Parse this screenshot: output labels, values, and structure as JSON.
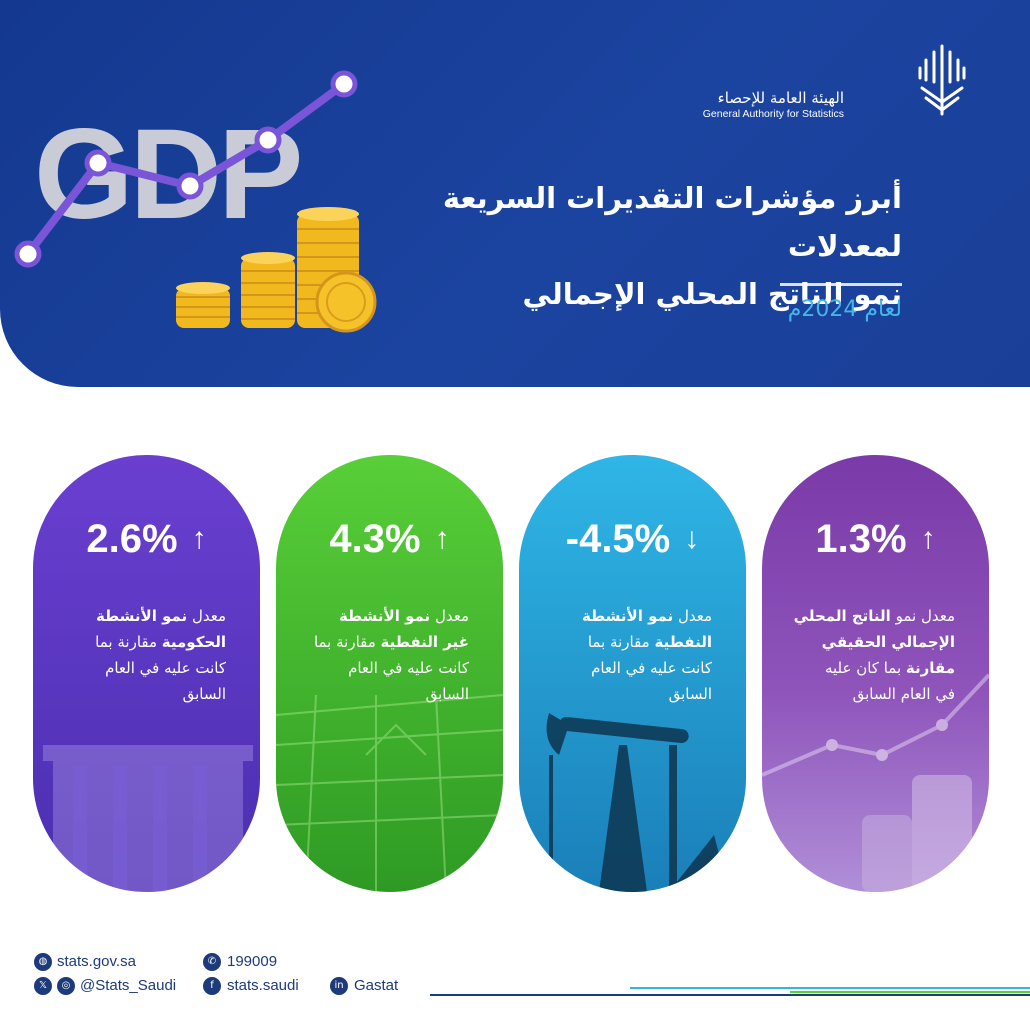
{
  "header": {
    "banner_word": "GDP",
    "logo_ar": "الهيئة العامة للإحصاء",
    "logo_en": "General Authority for Statistics",
    "title_line1": "أبرز مؤشرات التقديرات السريعة لمعدلات",
    "title_line2": "نمو الناتج المحلي الإجمالي",
    "year": "لعام 2024م"
  },
  "cards": [
    {
      "value": "2.6%",
      "direction": "up",
      "arrow": "↑",
      "color_top": "#6a3fd0",
      "color_bottom": "#4a2fb0",
      "desc": [
        {
          "pre": "معدل ",
          "bold": "نمو الأنشطة",
          "post": ""
        },
        {
          "pre": "",
          "bold": "الحكومية",
          "post": " مقارنة بما"
        },
        {
          "pre": "كانت عليه في العام",
          "bold": "",
          "post": ""
        },
        {
          "pre": "السابق",
          "bold": "",
          "post": ""
        }
      ]
    },
    {
      "value": "4.3%",
      "direction": "up",
      "arrow": "↑",
      "color_top": "#58cf38",
      "color_bottom": "#2e9a24",
      "desc": [
        {
          "pre": "معدل ",
          "bold": "نمو الأنشطة",
          "post": ""
        },
        {
          "pre": "",
          "bold": "غير النفطية",
          "post": " مقارنة بما"
        },
        {
          "pre": "كانت عليه في العام",
          "bold": "",
          "post": ""
        },
        {
          "pre": "السابق",
          "bold": "",
          "post": ""
        }
      ]
    },
    {
      "value": "-4.5%",
      "direction": "down",
      "arrow": "↓",
      "color_top": "#2fb6e6",
      "color_bottom": "#1a7fb8",
      "desc": [
        {
          "pre": "معدل ",
          "bold": "نمو الأنشطة",
          "post": ""
        },
        {
          "pre": "",
          "bold": "النفطية",
          "post": " مقارنة بما"
        },
        {
          "pre": "كانت عليه في العام",
          "bold": "",
          "post": ""
        },
        {
          "pre": "السابق",
          "bold": "",
          "post": ""
        }
      ]
    },
    {
      "value": "1.3%",
      "direction": "up",
      "arrow": "↑",
      "color_top": "#7a3aa8",
      "color_bottom": "#a07ad0",
      "desc": [
        {
          "pre": "معدل نمو ",
          "bold": "الناتج المحلي",
          "post": ""
        },
        {
          "pre": "",
          "bold": "الإجمالي الحقيقي",
          "post": ""
        },
        {
          "pre": "",
          "bold": "مقارنة",
          "post": " بما كان عليه"
        },
        {
          "pre": "في العام السابق",
          "bold": "",
          "post": ""
        }
      ]
    }
  ],
  "footer": {
    "website": "stats.gov.sa",
    "phone": "199009",
    "social_handle": "@Stats_Saudi",
    "facebook": "stats.saudi",
    "linkedin": "Gastat",
    "line_colors": [
      "#1d3a7a",
      "#2fb6e6",
      "#58cf38",
      "#6a3fd0"
    ]
  },
  "icons": [
    "globe-icon",
    "phone-icon",
    "x-icon",
    "instagram-icon",
    "facebook-icon",
    "linkedin-icon"
  ]
}
